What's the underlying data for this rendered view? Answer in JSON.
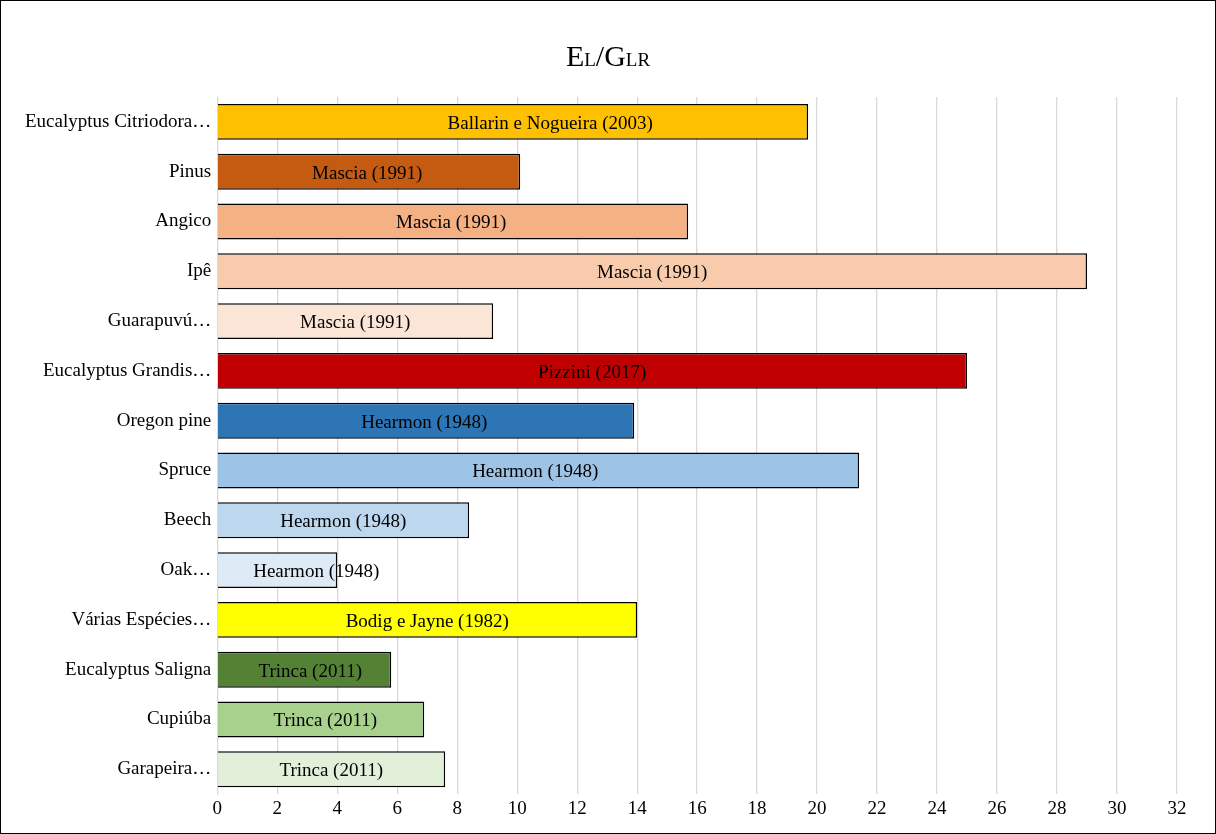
{
  "chart_data": {
    "type": "bar",
    "orientation": "horizontal",
    "title": "E$_{L}$/G$_{LR}$",
    "categories": [
      "Eucalyptus Citriodora…",
      "Pinus",
      "Angico",
      "Ipê",
      "Guarapuvú…",
      "Eucalyptus Grandis…",
      "Oregon pine",
      "Spruce",
      "Beech",
      "Oak…",
      "Várias Espécies…",
      "Eucalyptus Saligna",
      "Cupiúba",
      "Garapeira…"
    ],
    "values": [
      19.7,
      10.1,
      15.7,
      29.0,
      9.2,
      25.0,
      13.9,
      21.4,
      8.4,
      4.0,
      14.0,
      5.8,
      6.9,
      7.6
    ],
    "colors": [
      "#ffc000",
      "#c55a11",
      "#f4b183",
      "#f8cbad",
      "#fbe5d6",
      "#c00000",
      "#2e75b6",
      "#9dc3e6",
      "#bdd7ee",
      "#deebf7",
      "#ffff00",
      "#548235",
      "#a9d18e",
      "#e2f0d9"
    ],
    "annotations": [
      {
        "text": "Ballarin e Nogueira (2003)",
        "x": 11.1,
        "y": "Eucalyptus Citriodora…"
      },
      {
        "text": "Mascia (1991)",
        "x": 5.0,
        "y": "Pinus"
      },
      {
        "text": "Mascia (1991)",
        "x": 7.8,
        "y": "Angico"
      },
      {
        "text": "Mascia (1991)",
        "x": 14.5,
        "y": "Ipê"
      },
      {
        "text": "Mascia (1991)",
        "x": 4.6,
        "y": "Guarapuvú…"
      },
      {
        "text": "Pizzini (2017)",
        "x": 12.5,
        "y": "Eucalyptus Grandis…"
      },
      {
        "text": "Hearmon (1948)",
        "x": 6.9,
        "y": "Oregon pine"
      },
      {
        "text": "Hearmon (1948)",
        "x": 10.6,
        "y": "Spruce"
      },
      {
        "text": "Hearmon (1948)",
        "x": 4.2,
        "y": "Beech"
      },
      {
        "text": "Hearmon (1948)",
        "x": 3.3,
        "y": "Oak…"
      },
      {
        "text": "Bodig e Jayne (1982)",
        "x": 7.0,
        "y": "Várias Espécies…"
      },
      {
        "text": "Trinca (2011)",
        "x": 3.1,
        "y": "Eucalyptus Saligna"
      },
      {
        "text": "Trinca (2011)",
        "x": 3.6,
        "y": "Cupiúba"
      },
      {
        "text": "Trinca (2011)",
        "x": 3.8,
        "y": "Garapeira…"
      }
    ],
    "xlim": [
      0,
      32
    ],
    "xticks": [
      0,
      2,
      4,
      6,
      8,
      10,
      12,
      14,
      16,
      18,
      20,
      22,
      24,
      26,
      28,
      30,
      32
    ],
    "grid": "x"
  }
}
